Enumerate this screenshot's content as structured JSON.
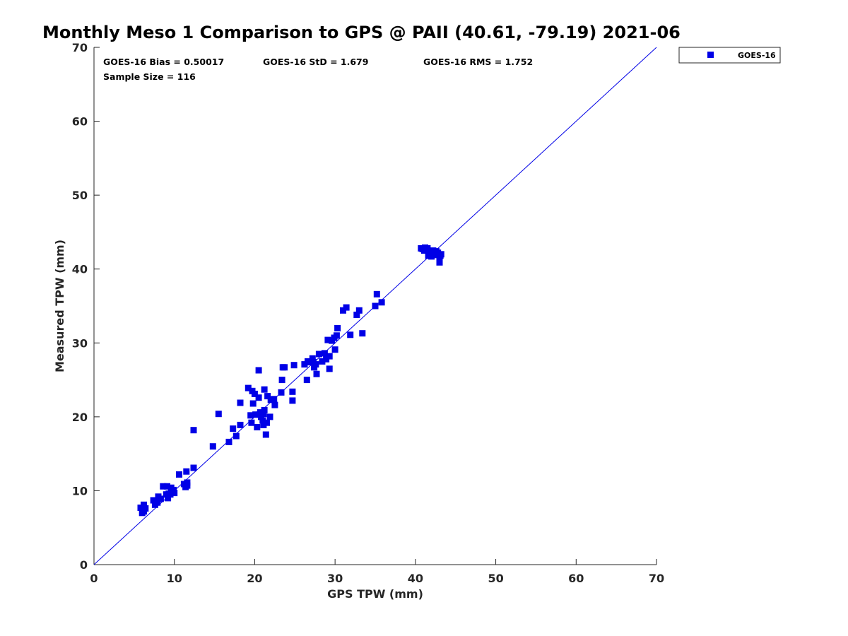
{
  "chart_data": {
    "type": "scatter",
    "title": "Monthly Meso 1 Comparison to GPS @ PAII (40.61, -79.19) 2021-06",
    "xlabel": "GPS TPW (mm)",
    "ylabel": "Measured TPW (mm)",
    "xlim": [
      0,
      70
    ],
    "ylim": [
      0,
      70
    ],
    "xticks": [
      "0",
      "10",
      "20",
      "30",
      "40",
      "50",
      "60",
      "70"
    ],
    "yticks": [
      "0",
      "10",
      "20",
      "30",
      "40",
      "50",
      "60",
      "70"
    ],
    "reference_line": {
      "x": [
        0,
        70
      ],
      "y": [
        0,
        70
      ],
      "color": "#0000e6"
    },
    "legend": {
      "position": "top-right-outside",
      "entries": [
        "GOES-16"
      ]
    },
    "stats": {
      "bias": "GOES-16 Bias = 0.50017",
      "std": "GOES-16 StD = 1.679",
      "rms": "GOES-16 RMS = 1.752",
      "sample": "Sample Size = 116"
    },
    "series": [
      {
        "name": "GOES-16",
        "color": "#0000e6",
        "marker": "square",
        "points": [
          [
            5.8,
            7.7
          ],
          [
            6.1,
            7.5
          ],
          [
            6.2,
            7.2
          ],
          [
            6.0,
            7.0
          ],
          [
            6.2,
            8.1
          ],
          [
            6.4,
            7.6
          ],
          [
            7.4,
            8.7
          ],
          [
            7.6,
            8.1
          ],
          [
            7.9,
            8.4
          ],
          [
            8.0,
            9.2
          ],
          [
            8.3,
            8.9
          ],
          [
            8.6,
            10.6
          ],
          [
            9.0,
            9.5
          ],
          [
            9.1,
            10.6
          ],
          [
            9.2,
            9.0
          ],
          [
            9.3,
            9.6
          ],
          [
            9.5,
            9.5
          ],
          [
            9.6,
            10.4
          ],
          [
            9.7,
            9.9
          ],
          [
            9.9,
            10.1
          ],
          [
            10.0,
            9.7
          ],
          [
            10.6,
            12.2
          ],
          [
            11.2,
            10.9
          ],
          [
            11.4,
            10.5
          ],
          [
            11.5,
            12.6
          ],
          [
            11.6,
            11.1
          ],
          [
            11.6,
            10.7
          ],
          [
            12.4,
            18.2
          ],
          [
            12.4,
            13.1
          ],
          [
            14.8,
            16.0
          ],
          [
            15.5,
            20.4
          ],
          [
            16.8,
            16.6
          ],
          [
            17.3,
            18.4
          ],
          [
            17.7,
            17.4
          ],
          [
            18.2,
            21.9
          ],
          [
            18.2,
            18.9
          ],
          [
            19.2,
            23.9
          ],
          [
            19.5,
            20.2
          ],
          [
            19.6,
            19.2
          ],
          [
            19.7,
            23.5
          ],
          [
            19.8,
            21.8
          ],
          [
            20.0,
            23.1
          ],
          [
            20.1,
            20.3
          ],
          [
            20.3,
            18.6
          ],
          [
            20.5,
            26.3
          ],
          [
            20.5,
            22.6
          ],
          [
            20.6,
            20.3
          ],
          [
            20.7,
            20.6
          ],
          [
            20.8,
            20.0
          ],
          [
            21.0,
            19.5
          ],
          [
            21.1,
            18.9
          ],
          [
            21.1,
            20.4
          ],
          [
            21.2,
            20.9
          ],
          [
            21.2,
            23.7
          ],
          [
            21.4,
            17.6
          ],
          [
            21.5,
            19.2
          ],
          [
            21.6,
            22.8
          ],
          [
            21.9,
            20.0
          ],
          [
            22.0,
            22.3
          ],
          [
            22.4,
            22.4
          ],
          [
            22.5,
            21.6
          ],
          [
            23.3,
            23.3
          ],
          [
            23.4,
            25.0
          ],
          [
            23.5,
            26.7
          ],
          [
            23.7,
            26.7
          ],
          [
            24.7,
            23.4
          ],
          [
            24.7,
            22.2
          ],
          [
            24.9,
            27.0
          ],
          [
            26.2,
            27.1
          ],
          [
            26.5,
            25.0
          ],
          [
            26.6,
            27.5
          ],
          [
            26.9,
            27.4
          ],
          [
            27.2,
            27.9
          ],
          [
            27.3,
            27.4
          ],
          [
            27.4,
            26.7
          ],
          [
            27.6,
            27.1
          ],
          [
            27.7,
            25.8
          ],
          [
            28.0,
            28.5
          ],
          [
            28.4,
            27.5
          ],
          [
            28.7,
            28.6
          ],
          [
            28.9,
            27.8
          ],
          [
            29.1,
            30.4
          ],
          [
            29.3,
            26.5
          ],
          [
            29.3,
            28.2
          ],
          [
            29.6,
            30.3
          ],
          [
            29.9,
            30.7
          ],
          [
            30.0,
            29.1
          ],
          [
            30.2,
            31.0
          ],
          [
            30.3,
            32.0
          ],
          [
            31.0,
            34.4
          ],
          [
            31.4,
            34.8
          ],
          [
            31.9,
            31.1
          ],
          [
            32.7,
            33.8
          ],
          [
            33.0,
            34.4
          ],
          [
            33.4,
            31.3
          ],
          [
            35.0,
            35.0
          ],
          [
            35.2,
            36.6
          ],
          [
            35.8,
            35.5
          ],
          [
            40.7,
            42.8
          ],
          [
            40.9,
            42.7
          ],
          [
            41.1,
            42.5
          ],
          [
            41.3,
            42.6
          ],
          [
            41.5,
            42.8
          ],
          [
            41.6,
            41.8
          ],
          [
            41.8,
            42.1
          ],
          [
            41.9,
            42.3
          ],
          [
            42.0,
            41.7
          ],
          [
            42.2,
            42.5
          ],
          [
            42.4,
            41.9
          ],
          [
            42.8,
            42.2
          ],
          [
            43.0,
            41.6
          ],
          [
            43.0,
            40.9
          ],
          [
            43.1,
            41.8
          ],
          [
            43.2,
            42.0
          ],
          [
            41.2,
            42.9
          ],
          [
            42.6,
            42.4
          ]
        ]
      }
    ]
  }
}
